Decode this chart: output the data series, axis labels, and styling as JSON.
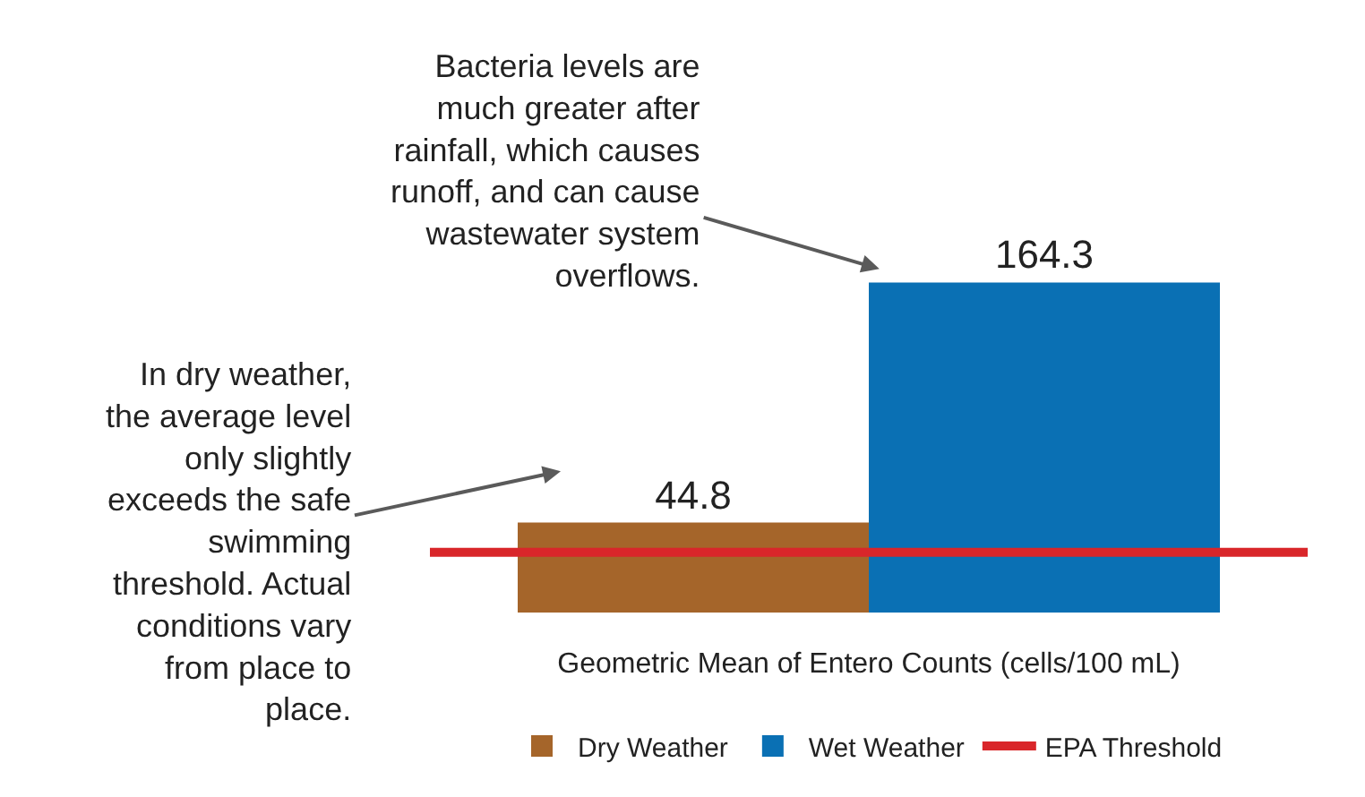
{
  "chart_data": {
    "type": "bar",
    "categories": [
      null
    ],
    "series": [
      {
        "name": "Dry Weather",
        "color": "#a5652a",
        "values": [
          44.8
        ]
      },
      {
        "name": "Wet Weather",
        "color": "#0a70b4",
        "values": [
          164.3
        ]
      }
    ],
    "tick_labels": false,
    "grid": false,
    "data_labels": true,
    "legend": "bottom",
    "xlabel": "Geometric Mean of Entero Counts (cells/100 mL)",
    "ref_lines": [
      {
        "axis": "y",
        "value": 30,
        "label": "EPA Threshold",
        "color": "#d9262a"
      }
    ],
    "annotations": [
      "Bacteria levels are\nmuch greater after\nrainfall, which causes\nrunoff, and can cause\nwastewater system\noverflows.",
      "In dry weather,\nthe average level\nonly slightly\nexceeds the safe\nswimming\nthreshold. Actual\nconditions vary\nfrom place to\nplace."
    ]
  }
}
